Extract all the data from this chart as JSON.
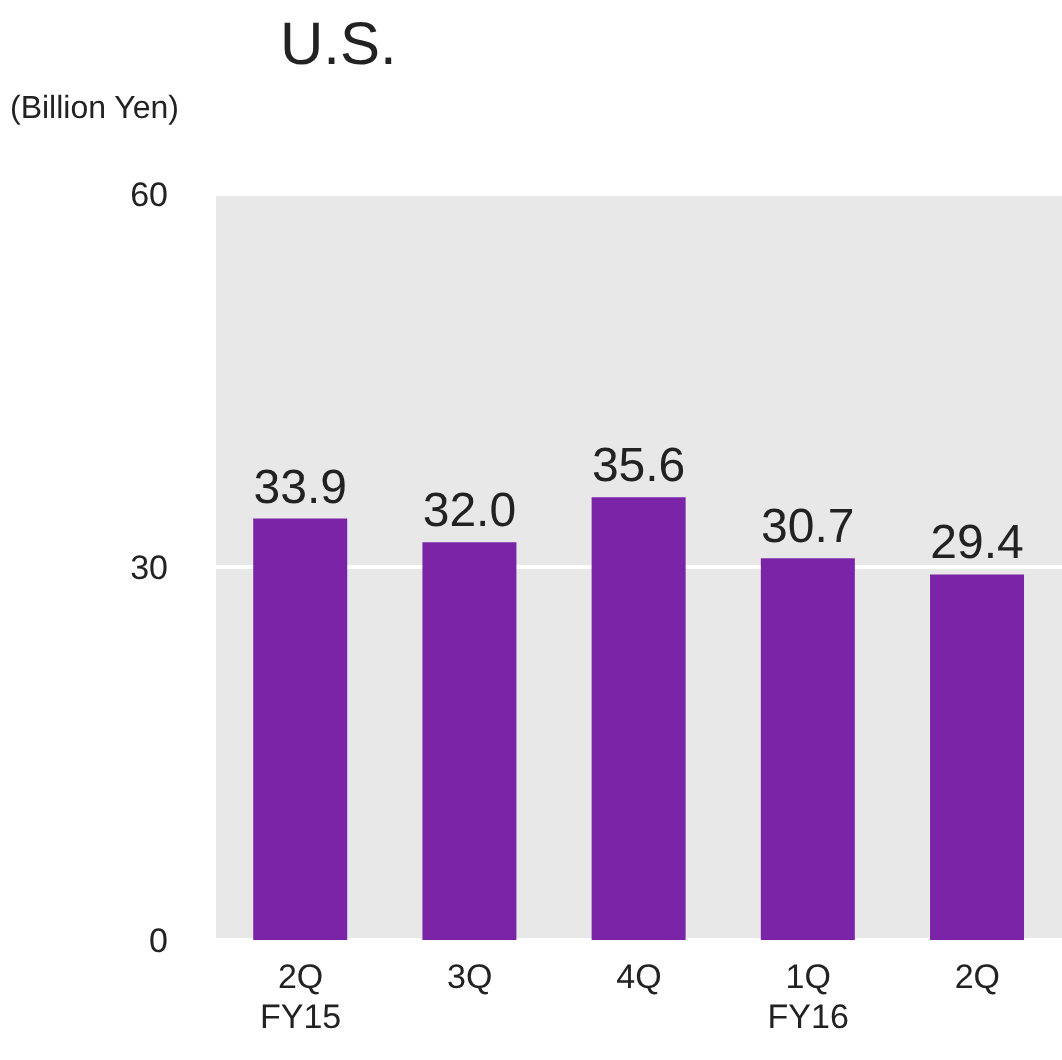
{
  "chart_data": {
    "type": "bar",
    "title": "U.S.",
    "ylabel": "(Billion Yen)",
    "categories": [
      "2Q\nFY15",
      "3Q",
      "4Q",
      "1Q\nFY16",
      "2Q"
    ],
    "values": [
      33.9,
      32.0,
      35.6,
      30.7,
      29.4
    ],
    "value_labels": [
      "33.9",
      "32.0",
      "35.6",
      "30.7",
      "29.4"
    ],
    "color": "#7b24a8",
    "ylim": [
      0,
      60
    ],
    "yticks": [
      0,
      30,
      60
    ],
    "grid": "y"
  }
}
